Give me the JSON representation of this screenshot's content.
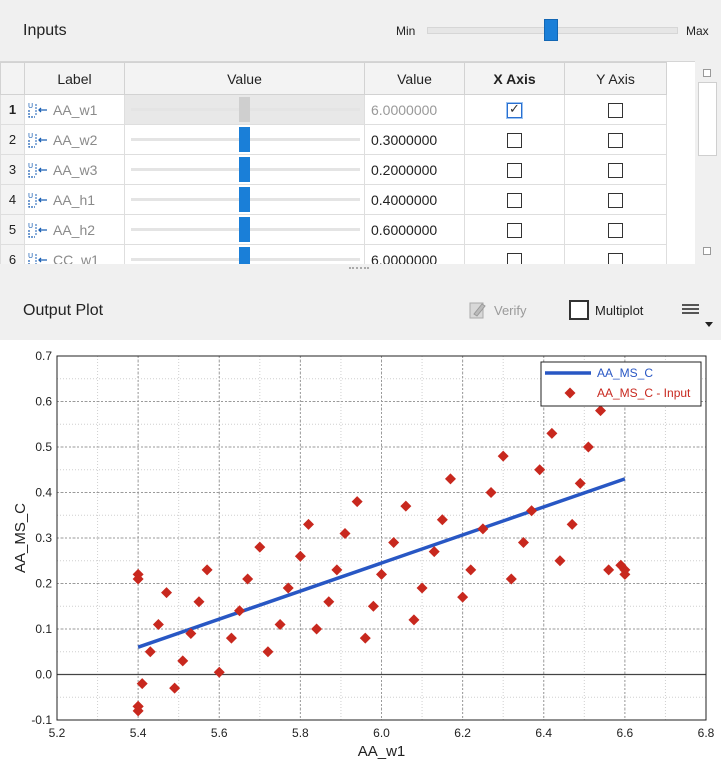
{
  "inputs": {
    "title": "Inputs",
    "slider": {
      "min_label": "Min",
      "max_label": "Max"
    },
    "columns": [
      "Label",
      "Value",
      "Value",
      "X Axis",
      "Y Axis"
    ],
    "rows": [
      {
        "num": "1",
        "label": "AA_w1",
        "value": "6.0000000",
        "x_checked": true,
        "y_checked": false,
        "slider_pos": 0.5
      },
      {
        "num": "2",
        "label": "AA_w2",
        "value": "0.3000000",
        "x_checked": false,
        "y_checked": false,
        "slider_pos": 0.5
      },
      {
        "num": "3",
        "label": "AA_w3",
        "value": "0.2000000",
        "x_checked": false,
        "y_checked": false,
        "slider_pos": 0.5
      },
      {
        "num": "4",
        "label": "AA_h1",
        "value": "0.4000000",
        "x_checked": false,
        "y_checked": false,
        "slider_pos": 0.5
      },
      {
        "num": "5",
        "label": "AA_h2",
        "value": "0.6000000",
        "x_checked": false,
        "y_checked": false,
        "slider_pos": 0.5
      },
      {
        "num": "6",
        "label": "CC_w1",
        "value": "6.0000000",
        "x_checked": false,
        "y_checked": false,
        "slider_pos": 0.5
      }
    ]
  },
  "output": {
    "title": "Output Plot",
    "verify_label": "Verify",
    "multiplot_label": "Multiplot"
  },
  "colors": {
    "accent": "#1a7fd8",
    "line": "#2857c4",
    "marker": "#c8281e"
  },
  "chart_data": {
    "type": "scatter",
    "xlabel": "AA_w1",
    "ylabel": "AA_MS_C",
    "xlim": [
      5.2,
      6.8
    ],
    "ylim": [
      -0.1,
      0.7
    ],
    "xticks": [
      "5.2",
      "5.4",
      "5.6",
      "5.8",
      "6.0",
      "6.2",
      "6.4",
      "6.6",
      "6.8"
    ],
    "yticks": [
      "-0.1",
      "0.0",
      "0.1",
      "0.2",
      "0.3",
      "0.4",
      "0.5",
      "0.6",
      "0.7"
    ],
    "grid": true,
    "legend": "top-right",
    "series": [
      {
        "name": "AA_MS_C",
        "kind": "line",
        "x": [
          5.4,
          6.6
        ],
        "y": [
          0.06,
          0.43
        ]
      },
      {
        "name": "AA_MS_C - Input",
        "kind": "points",
        "x": [
          5.4,
          5.4,
          5.41,
          5.4,
          5.43,
          5.45,
          5.47,
          5.49,
          5.51,
          5.53,
          5.55,
          5.57,
          5.6,
          5.63,
          5.65,
          5.67,
          5.7,
          5.72,
          5.75,
          5.77,
          5.8,
          5.82,
          5.84,
          5.87,
          5.89,
          5.91,
          5.94,
          5.96,
          5.98,
          6.0,
          6.03,
          6.06,
          6.08,
          6.1,
          6.13,
          6.15,
          6.17,
          6.2,
          6.22,
          6.25,
          6.27,
          6.3,
          6.32,
          6.35,
          6.37,
          6.39,
          6.42,
          6.44,
          6.47,
          6.49,
          6.51,
          6.54,
          6.56,
          6.59,
          6.6,
          6.6,
          5.4,
          5.4
        ],
        "y": [
          0.22,
          -0.08,
          -0.02,
          -0.07,
          0.05,
          0.11,
          0.18,
          -0.03,
          0.03,
          0.09,
          0.16,
          0.23,
          0.005,
          0.08,
          0.14,
          0.21,
          0.28,
          0.05,
          0.11,
          0.19,
          0.26,
          0.33,
          0.1,
          0.16,
          0.23,
          0.31,
          0.38,
          0.08,
          0.15,
          0.22,
          0.29,
          0.37,
          0.12,
          0.19,
          0.27,
          0.34,
          0.43,
          0.17,
          0.23,
          0.32,
          0.4,
          0.48,
          0.21,
          0.29,
          0.36,
          0.45,
          0.53,
          0.25,
          0.33,
          0.42,
          0.5,
          0.58,
          0.23,
          0.24,
          0.22,
          0.23,
          0.21,
          -0.07
        ]
      }
    ]
  }
}
